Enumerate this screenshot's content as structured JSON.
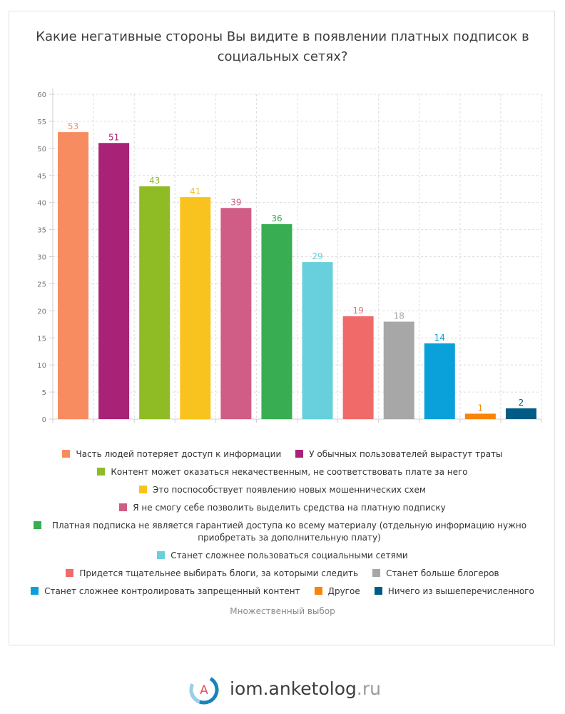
{
  "title": "Какие негативные стороны Вы видите в появлении платных подписок в социальных сетях?",
  "note": "Множественный выбор",
  "logo": {
    "name": "iom.anketolog",
    "tld": ".ru",
    "mark": "A"
  },
  "chart_data": {
    "type": "bar",
    "ylim": [
      0,
      60
    ],
    "yticks": [
      0,
      5,
      10,
      15,
      20,
      25,
      30,
      35,
      40,
      45,
      50,
      55,
      60
    ],
    "grid": true,
    "legend_position": "bottom",
    "categories": [
      "Часть людей потеряет доступ к информации",
      "У обычных пользователей вырастут траты",
      "Контент может оказаться некачественным, не соответствовать плате за него",
      "Это поспособствует появлению новых мошеннических схем",
      "Я не смогу себе позволить выделить средства на платную подписку",
      "Платная подписка не является гарантией доступа ко всему материалу (отдельную информацию нужно приобретать за дополнительную плату)",
      "Станет сложнее пользоваться социальными сетями",
      "Придется тщательнее выбирать блоги, за которыми следить",
      "Станет больше блогеров",
      "Станет сложнее контролировать запрещенный контент",
      "Другое",
      "Ничего из вышеперечисленного"
    ],
    "values": [
      53,
      51,
      43,
      41,
      39,
      36,
      29,
      19,
      18,
      14,
      1,
      2
    ],
    "colors": [
      "#f78c60",
      "#a82277",
      "#8fbb25",
      "#f9c31f",
      "#d05d85",
      "#38ad51",
      "#67d0dc",
      "#f06a6a",
      "#a7a7a7",
      "#0aa0d9",
      "#f88408",
      "#005b85"
    ]
  },
  "legend_rows": [
    [
      0,
      1
    ],
    [
      2
    ],
    [
      3
    ],
    [
      4
    ],
    [
      5
    ],
    [
      6
    ],
    [
      7,
      8
    ],
    [
      9,
      10,
      11
    ]
  ]
}
